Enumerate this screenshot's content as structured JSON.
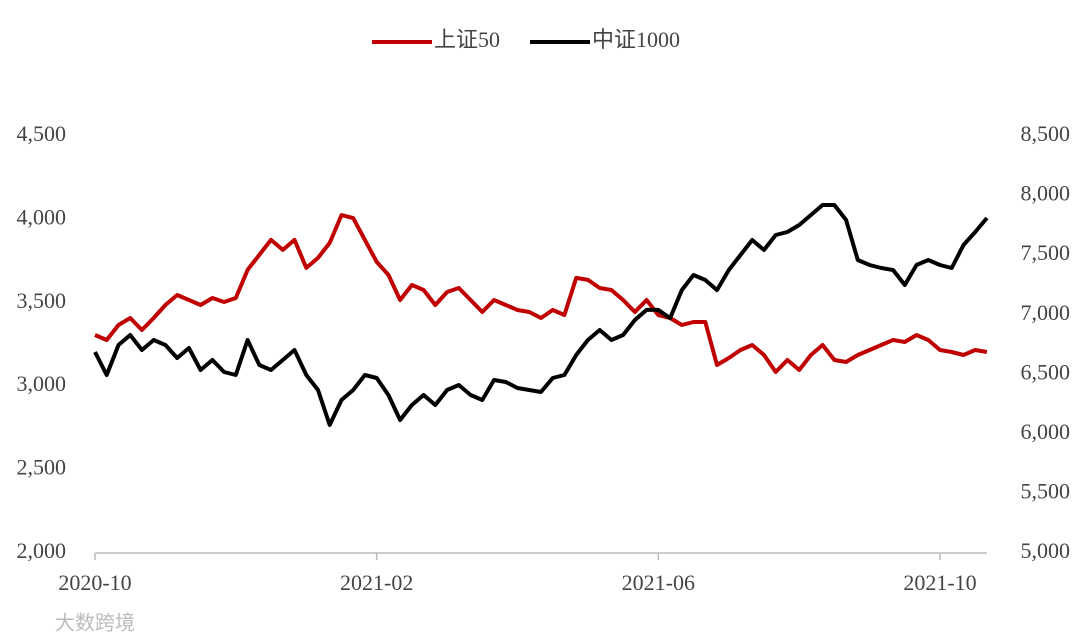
{
  "chart_data": {
    "type": "line",
    "watermark": "大数跨境",
    "categories": [
      "2020-10",
      null,
      null,
      null,
      null,
      null,
      null,
      null,
      null,
      null,
      null,
      null,
      null,
      null,
      null,
      null,
      null,
      null,
      null,
      null,
      null,
      null,
      null,
      null,
      "2021-02",
      null,
      null,
      null,
      null,
      null,
      null,
      null,
      null,
      null,
      null,
      null,
      null,
      null,
      null,
      null,
      null,
      null,
      null,
      null,
      null,
      null,
      null,
      null,
      "2021-06",
      null,
      null,
      null,
      null,
      null,
      null,
      null,
      null,
      null,
      null,
      null,
      null,
      null,
      null,
      null,
      null,
      null,
      null,
      null,
      null,
      null,
      null,
      null,
      "2021-10",
      null,
      null,
      null,
      null
    ],
    "series": [
      {
        "name": "上证50",
        "color": "#c00000",
        "axis": "y",
        "values": [
          3307,
          3277,
          3367,
          3409,
          3337,
          3409,
          3487,
          3547,
          3517,
          3487,
          3529,
          3505,
          3529,
          3697,
          3787,
          3877,
          3817,
          3877,
          3709,
          3769,
          3859,
          4026,
          4008,
          3877,
          3745,
          3667,
          3517,
          3607,
          3577,
          3487,
          3565,
          3589,
          3517,
          3445,
          3517,
          3487,
          3457,
          3445,
          3409,
          3457,
          3427,
          3649,
          3637,
          3589,
          3577,
          3517,
          3445,
          3517,
          3427,
          3409,
          3367,
          3385,
          3385,
          3127,
          3169,
          3217,
          3247,
          3187,
          3085,
          3157,
          3097,
          3187,
          3247,
          3157,
          3145,
          3187,
          3217,
          3247,
          3277,
          3265,
          3307,
          3277,
          3217,
          3205,
          3187,
          3217,
          3205
        ]
      },
      {
        "name": "中证1000",
        "color": "#000000",
        "axis": "y2",
        "values": [
          6687,
          6494,
          6746,
          6830,
          6704,
          6788,
          6746,
          6637,
          6721,
          6536,
          6620,
          6519,
          6494,
          6788,
          6578,
          6536,
          6620,
          6704,
          6494,
          6368,
          6074,
          6284,
          6368,
          6494,
          6469,
          6326,
          6116,
          6242,
          6326,
          6242,
          6368,
          6410,
          6326,
          6284,
          6452,
          6435,
          6385,
          6368,
          6351,
          6469,
          6494,
          6662,
          6788,
          6872,
          6788,
          6830,
          6956,
          7040,
          7040,
          6972,
          7207,
          7333,
          7291,
          7207,
          7375,
          7501,
          7627,
          7543,
          7669,
          7694,
          7753,
          7837,
          7921,
          7921,
          7795,
          7459,
          7417,
          7392,
          7375,
          7249,
          7417,
          7459,
          7417,
          7392,
          7585,
          7694,
          7812
        ]
      }
    ],
    "ylim": [
      2000,
      4500
    ],
    "yticks": [
      {
        "value": 2000,
        "label": "2,000"
      },
      {
        "value": 2500,
        "label": "2,500"
      },
      {
        "value": 3000,
        "label": "3,000"
      },
      {
        "value": 3500,
        "label": "3,500"
      },
      {
        "value": 4000,
        "label": "4,000"
      },
      {
        "value": 4500,
        "label": "4,500"
      }
    ],
    "y2lim": [
      5000,
      8500
    ],
    "y2ticks": [
      {
        "value": 5000,
        "label": "5,000"
      },
      {
        "value": 5500,
        "label": "5,500"
      },
      {
        "value": 6000,
        "label": "6,000"
      },
      {
        "value": 6500,
        "label": "6,500"
      },
      {
        "value": 7000,
        "label": "7,000"
      },
      {
        "value": 7500,
        "label": "7,500"
      },
      {
        "value": 8000,
        "label": "8,000"
      },
      {
        "value": 8500,
        "label": "8,500"
      }
    ],
    "legend": "top"
  }
}
